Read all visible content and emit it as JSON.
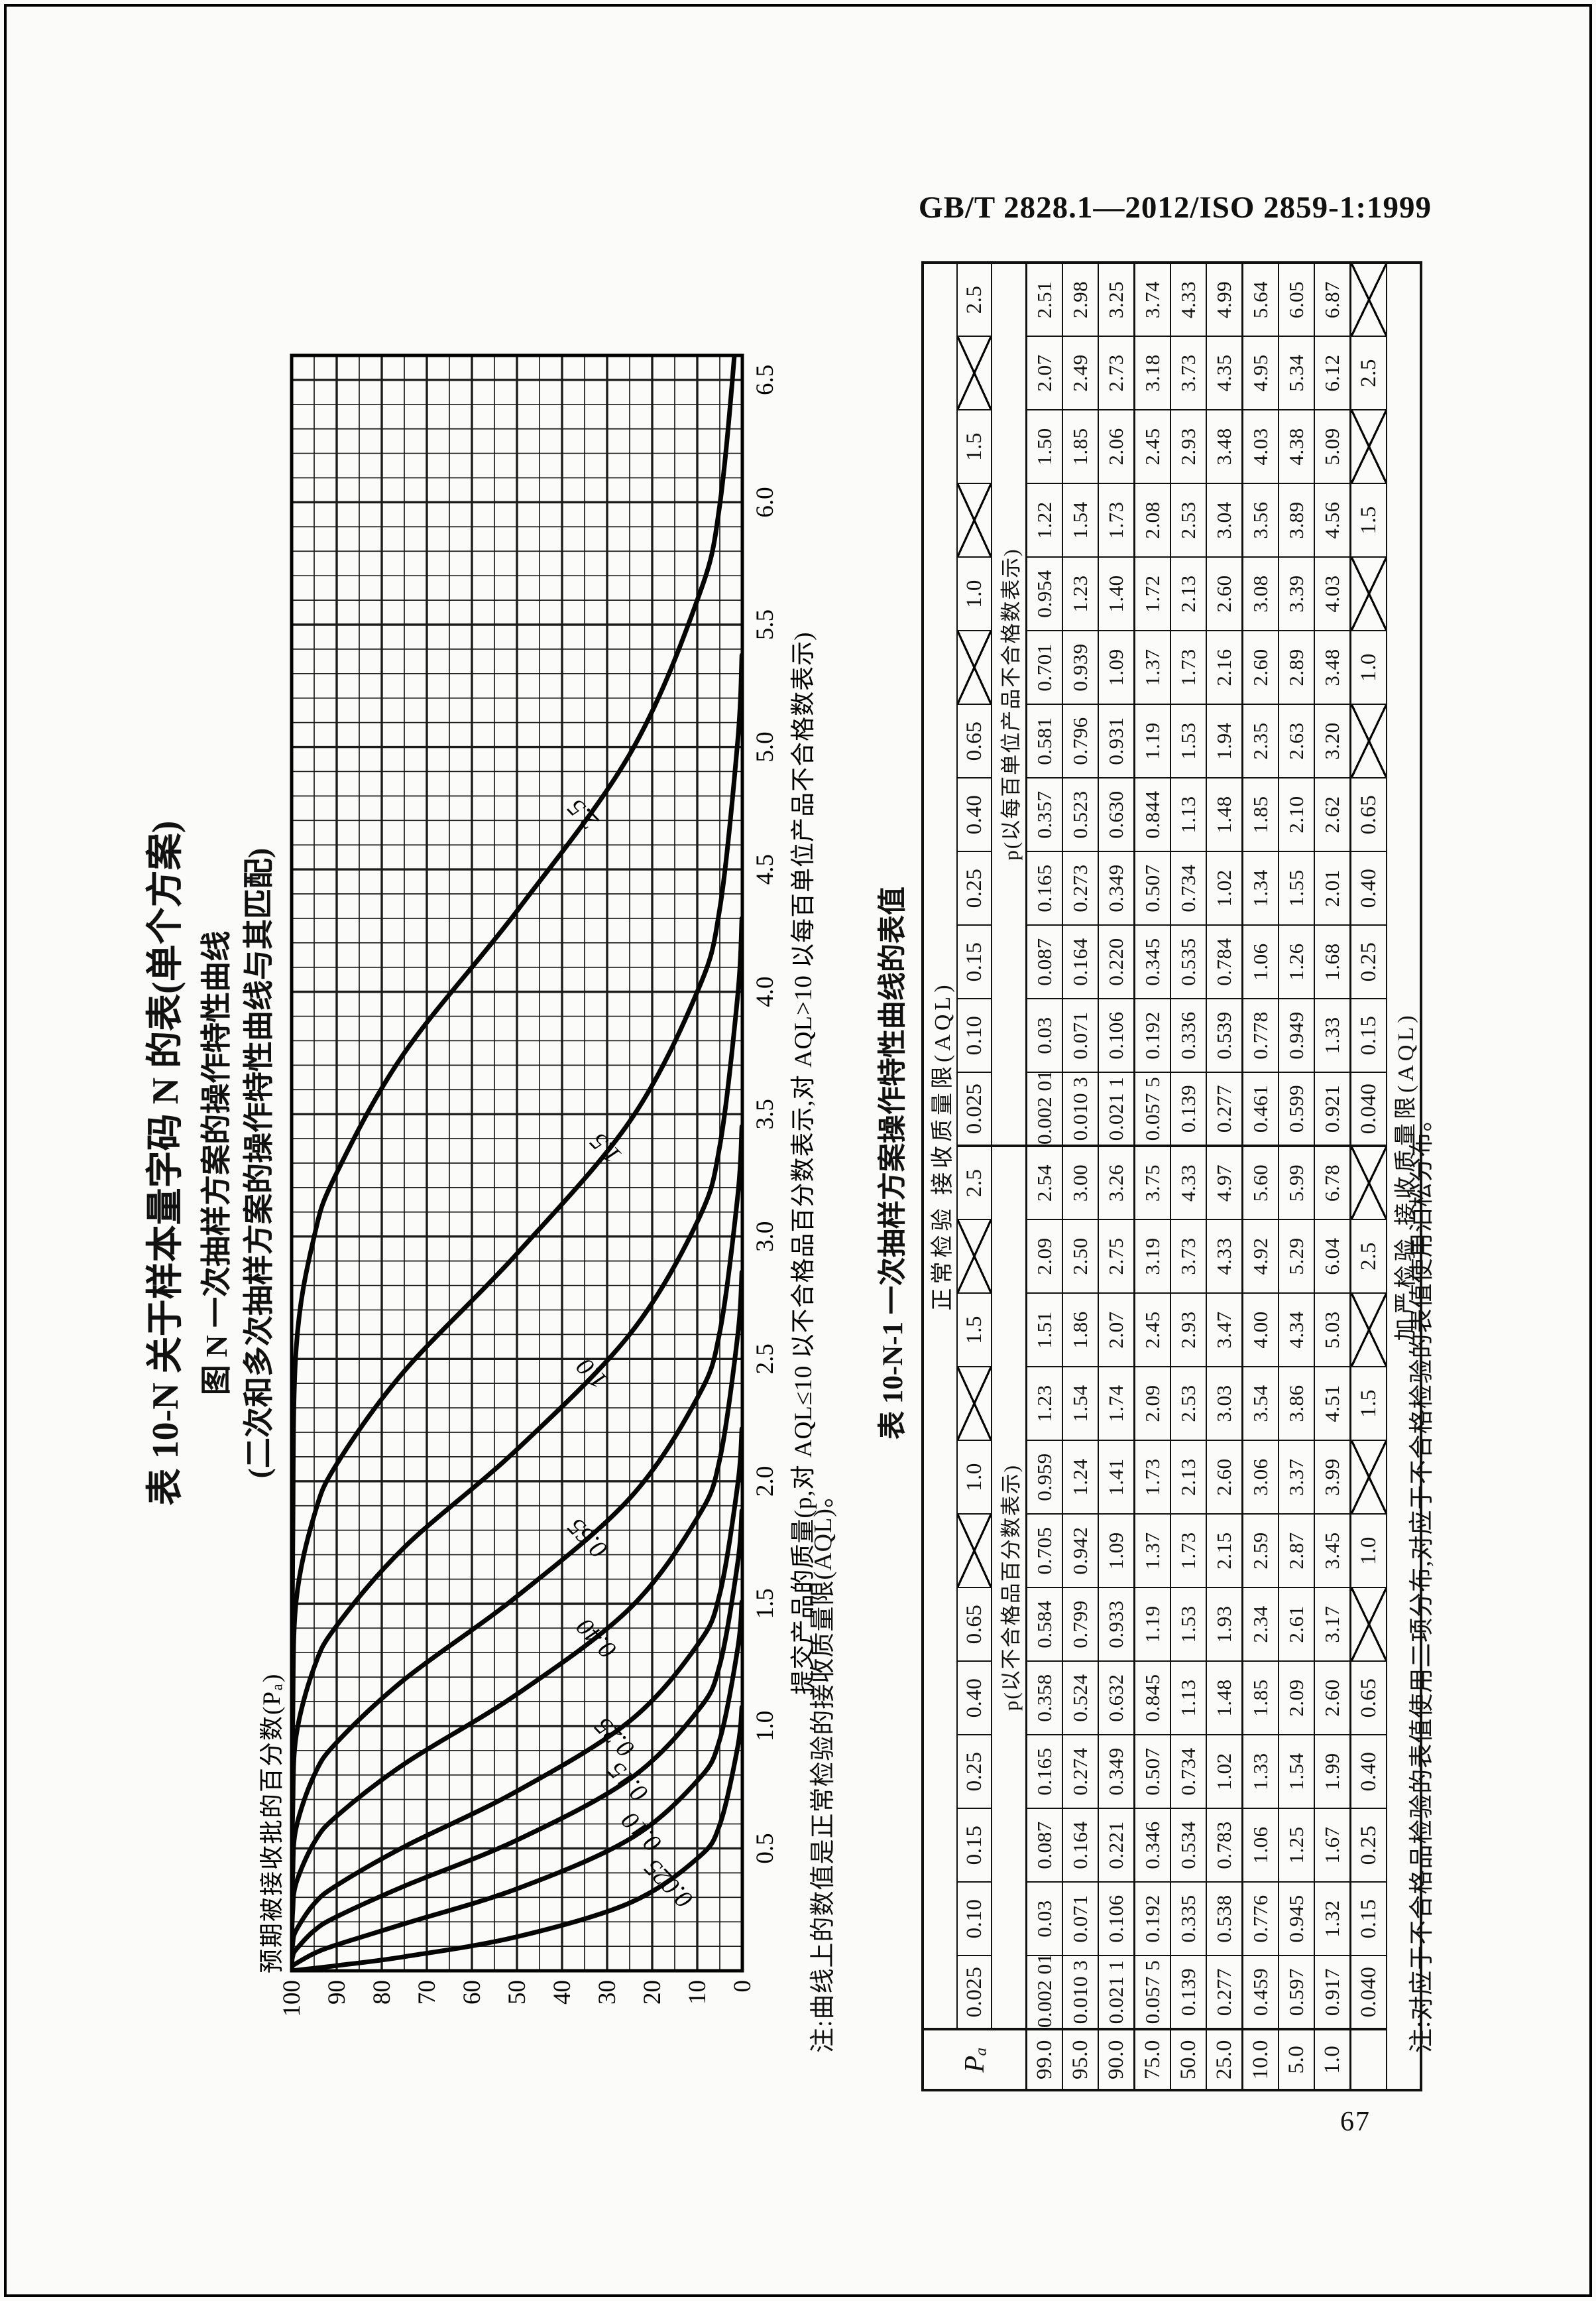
{
  "header": "GB/T 2828.1—2012/ISO 2859-1:1999",
  "page_number": "67",
  "titles": {
    "line1": "表 10-N  关于样本量字码 N 的表(单个方案)",
    "line2": "图 N  一次抽样方案的操作特性曲线",
    "line3": "(二次和多次抽样方案的操作特性曲线与其匹配)"
  },
  "chart_data": {
    "type": "line",
    "xlabel": "提交产品的质量(p,对 AQL≤10 以不合格品百分数表示,对 AQL>10 以每百单位产品不合格数表示)",
    "ylabel": "预期被接收批的百分数(Pₐ)",
    "note": "注:曲线上的数值是正常检验的接收质量限(AQL)。",
    "xlim": [
      0,
      6.6
    ],
    "ylim": [
      0,
      100
    ],
    "x_ticks": [
      0.5,
      1.0,
      1.5,
      2.0,
      2.5,
      3.0,
      3.5,
      4.0,
      4.5,
      5.0,
      5.5,
      6.0,
      6.5
    ],
    "y_ticks": [
      100,
      90,
      80,
      70,
      60,
      50,
      40,
      30,
      20,
      10,
      0
    ],
    "grid_minor_x": 0.1,
    "grid_minor_y": 5,
    "legend_position": "labels-on-curves",
    "series": [
      {
        "label": "0.025",
        "label_at_pa": 13,
        "points": [
          [
            0.00201,
            99
          ],
          [
            0.0103,
            95
          ],
          [
            0.0211,
            90
          ],
          [
            0.0575,
            75
          ],
          [
            0.139,
            50
          ],
          [
            0.277,
            25
          ],
          [
            0.459,
            10
          ],
          [
            0.597,
            5
          ],
          [
            0.917,
            1
          ]
        ]
      },
      {
        "label": "0.10",
        "label_at_pa": 19,
        "points": [
          [
            0.03,
            99
          ],
          [
            0.071,
            95
          ],
          [
            0.106,
            90
          ],
          [
            0.192,
            75
          ],
          [
            0.335,
            50
          ],
          [
            0.538,
            25
          ],
          [
            0.776,
            10
          ],
          [
            0.945,
            5
          ],
          [
            1.32,
            1
          ]
        ]
      },
      {
        "label": "0.15",
        "label_at_pa": 22,
        "points": [
          [
            0.087,
            99
          ],
          [
            0.164,
            95
          ],
          [
            0.221,
            90
          ],
          [
            0.346,
            75
          ],
          [
            0.534,
            50
          ],
          [
            0.783,
            25
          ],
          [
            1.06,
            10
          ],
          [
            1.25,
            5
          ],
          [
            1.67,
            1
          ]
        ]
      },
      {
        "label": "0.25",
        "label_at_pa": 25,
        "points": [
          [
            0.165,
            99
          ],
          [
            0.274,
            95
          ],
          [
            0.349,
            90
          ],
          [
            0.507,
            75
          ],
          [
            0.734,
            50
          ],
          [
            1.02,
            25
          ],
          [
            1.33,
            10
          ],
          [
            1.54,
            5
          ],
          [
            1.99,
            1
          ]
        ]
      },
      {
        "label": "0.40",
        "label_at_pa": 29,
        "points": [
          [
            0.358,
            99
          ],
          [
            0.524,
            95
          ],
          [
            0.632,
            90
          ],
          [
            0.845,
            75
          ],
          [
            1.13,
            50
          ],
          [
            1.48,
            25
          ],
          [
            1.85,
            10
          ],
          [
            2.09,
            5
          ],
          [
            2.6,
            1
          ]
        ]
      },
      {
        "label": "0.65",
        "label_at_pa": 31,
        "points": [
          [
            0.584,
            99
          ],
          [
            0.799,
            95
          ],
          [
            0.933,
            90
          ],
          [
            1.19,
            75
          ],
          [
            1.53,
            50
          ],
          [
            1.93,
            25
          ],
          [
            2.34,
            10
          ],
          [
            2.61,
            5
          ],
          [
            3.17,
            1
          ]
        ]
      },
      {
        "label": "1.0",
        "label_at_pa": 30,
        "points": [
          [
            0.959,
            99
          ],
          [
            1.24,
            95
          ],
          [
            1.41,
            90
          ],
          [
            1.73,
            75
          ],
          [
            2.13,
            50
          ],
          [
            2.6,
            25
          ],
          [
            3.06,
            10
          ],
          [
            3.37,
            5
          ],
          [
            3.99,
            1
          ]
        ]
      },
      {
        "label": "1.5",
        "label_at_pa": 27,
        "points": [
          [
            1.51,
            99
          ],
          [
            1.86,
            95
          ],
          [
            2.07,
            90
          ],
          [
            2.45,
            75
          ],
          [
            2.93,
            50
          ],
          [
            3.47,
            25
          ],
          [
            4.0,
            10
          ],
          [
            4.34,
            5
          ],
          [
            5.03,
            1
          ]
        ]
      },
      {
        "label": "2.5",
        "label_at_pa": 32,
        "points": [
          [
            2.54,
            99
          ],
          [
            3.0,
            95
          ],
          [
            3.26,
            90
          ],
          [
            3.75,
            75
          ],
          [
            4.33,
            50
          ],
          [
            4.97,
            25
          ],
          [
            5.6,
            10
          ],
          [
            5.99,
            5
          ],
          [
            6.78,
            1
          ]
        ]
      }
    ]
  },
  "table": {
    "title": "表 10-N-1  一次抽样方案操作特性曲线的表值",
    "pa_header": "Pₐ",
    "normal_header": "正常检验  接收质量限(AQL)",
    "tightened_header": "加严检验  接收质量限(AQL)",
    "group_percent": "p(以不合格品百分数表示)",
    "group_per_hundred": "p(以每百单位产品不合格数表示)",
    "aql_normal": [
      "0.025",
      "0.10",
      "0.15",
      "0.25",
      "0.40",
      "0.65",
      "X",
      "1.0",
      "X",
      "1.5",
      "X",
      "2.5",
      "0.025",
      "0.10",
      "0.15",
      "0.25",
      "0.40",
      "0.65",
      "X",
      "1.0",
      "X",
      "1.5",
      "X",
      "2.5"
    ],
    "aql_tightened": [
      "0.040",
      "0.15",
      "0.25",
      "0.40",
      "0.65",
      "X",
      "1.0",
      "X",
      "1.5",
      "X",
      "2.5",
      "X",
      "0.040",
      "0.15",
      "0.25",
      "0.40",
      "0.65",
      "X",
      "1.0",
      "X",
      "1.5",
      "X",
      "2.5",
      "X"
    ],
    "pa_rows": [
      {
        "pa": "99.0",
        "values": [
          "0.002 01",
          "0.03",
          "0.087",
          "0.165",
          "0.358",
          "0.584",
          "0.705",
          "0.959",
          "1.23",
          "1.51",
          "2.09",
          "2.54",
          "0.002 01",
          "0.03",
          "0.087",
          "0.165",
          "0.357",
          "0.581",
          "0.701",
          "0.954",
          "1.22",
          "1.50",
          "2.07",
          "2.51"
        ]
      },
      {
        "pa": "95.0",
        "values": [
          "0.010 3",
          "0.071",
          "0.164",
          "0.274",
          "0.524",
          "0.799",
          "0.942",
          "1.24",
          "1.54",
          "1.86",
          "2.50",
          "3.00",
          "0.010 3",
          "0.071",
          "0.164",
          "0.273",
          "0.523",
          "0.796",
          "0.939",
          "1.23",
          "1.54",
          "1.85",
          "2.49",
          "2.98"
        ]
      },
      {
        "pa": "90.0",
        "values": [
          "0.021 1",
          "0.106",
          "0.221",
          "0.349",
          "0.632",
          "0.933",
          "1.09",
          "1.41",
          "1.74",
          "2.07",
          "2.75",
          "3.26",
          "0.021 1",
          "0.106",
          "0.220",
          "0.349",
          "0.630",
          "0.931",
          "1.09",
          "1.40",
          "1.73",
          "2.06",
          "2.73",
          "3.25"
        ]
      },
      {
        "pa": "75.0",
        "values": [
          "0.057 5",
          "0.192",
          "0.346",
          "0.507",
          "0.845",
          "1.19",
          "1.37",
          "1.73",
          "2.09",
          "2.45",
          "3.19",
          "3.75",
          "0.057 5",
          "0.192",
          "0.345",
          "0.507",
          "0.844",
          "1.19",
          "1.37",
          "1.72",
          "2.08",
          "2.45",
          "3.18",
          "3.74"
        ]
      },
      {
        "pa": "50.0",
        "values": [
          "0.139",
          "0.335",
          "0.534",
          "0.734",
          "1.13",
          "1.53",
          "1.73",
          "2.13",
          "2.53",
          "2.93",
          "3.73",
          "4.33",
          "0.139",
          "0.336",
          "0.535",
          "0.734",
          "1.13",
          "1.53",
          "1.73",
          "2.13",
          "2.53",
          "2.93",
          "3.73",
          "4.33"
        ]
      },
      {
        "pa": "25.0",
        "values": [
          "0.277",
          "0.538",
          "0.783",
          "1.02",
          "1.48",
          "1.93",
          "2.15",
          "2.60",
          "3.03",
          "3.47",
          "4.33",
          "4.97",
          "0.277",
          "0.539",
          "0.784",
          "1.02",
          "1.48",
          "1.94",
          "2.16",
          "2.60",
          "3.04",
          "3.48",
          "4.35",
          "4.99"
        ]
      },
      {
        "pa": "10.0",
        "values": [
          "0.459",
          "0.776",
          "1.06",
          "1.33",
          "1.85",
          "2.34",
          "2.59",
          "3.06",
          "3.54",
          "4.00",
          "4.92",
          "5.60",
          "0.461",
          "0.778",
          "1.06",
          "1.34",
          "1.85",
          "2.35",
          "2.60",
          "3.08",
          "3.56",
          "4.03",
          "4.95",
          "5.64"
        ]
      },
      {
        "pa": "5.0",
        "values": [
          "0.597",
          "0.945",
          "1.25",
          "1.54",
          "2.09",
          "2.61",
          "2.87",
          "3.37",
          "3.86",
          "4.34",
          "5.29",
          "5.99",
          "0.599",
          "0.949",
          "1.26",
          "1.55",
          "2.10",
          "2.63",
          "2.89",
          "3.39",
          "3.89",
          "4.38",
          "5.34",
          "6.05"
        ]
      },
      {
        "pa": "1.0",
        "values": [
          "0.917",
          "1.32",
          "1.67",
          "1.99",
          "2.60",
          "3.17",
          "3.45",
          "3.99",
          "4.51",
          "5.03",
          "6.04",
          "6.78",
          "0.921",
          "1.33",
          "1.68",
          "2.01",
          "2.62",
          "3.20",
          "3.48",
          "4.03",
          "4.56",
          "5.09",
          "6.12",
          "6.87"
        ]
      }
    ],
    "note": "注:对应于不合格品检验的表值使用二项分布,对应于不合格检验的表值使用泊松分布。"
  }
}
